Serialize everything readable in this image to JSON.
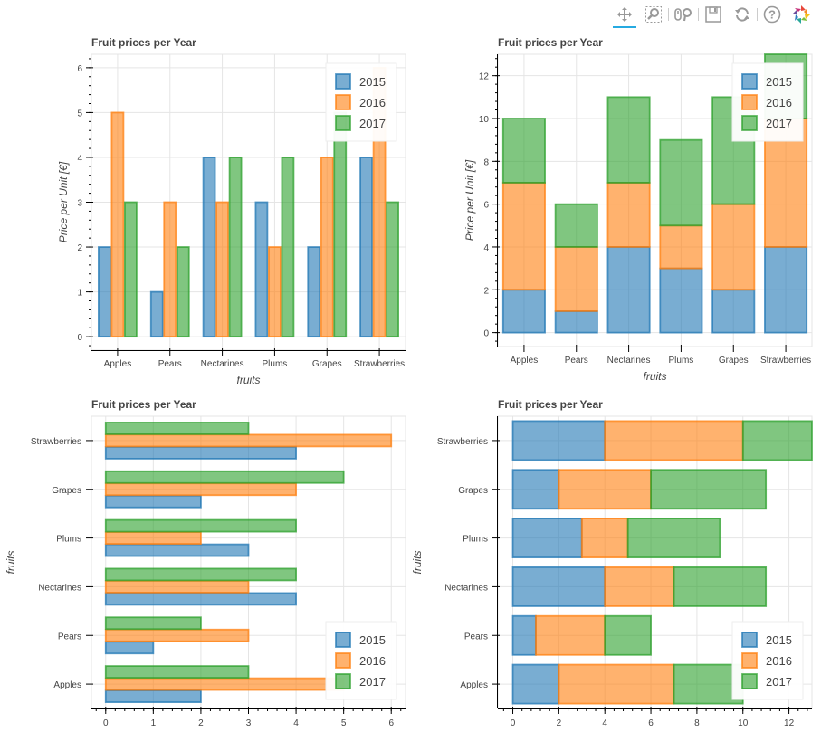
{
  "toolbar": {
    "tools": [
      {
        "name": "pan-tool",
        "icon": "pan-icon",
        "active": true
      },
      {
        "name": "box-zoom-tool",
        "icon": "box-zoom-icon",
        "active": false
      },
      {
        "name": "wheel-zoom-tool",
        "icon": "wheel-zoom-icon",
        "active": false
      },
      {
        "name": "save-tool",
        "icon": "save-icon",
        "active": false
      },
      {
        "name": "reset-tool",
        "icon": "reset-icon",
        "active": false
      },
      {
        "name": "help-tool",
        "icon": "help-icon",
        "active": false
      },
      {
        "name": "bokeh-logo",
        "icon": "bokeh-logo-icon",
        "active": false
      }
    ]
  },
  "colors": {
    "2015": "#1f77b4",
    "2016": "#ff7f0e",
    "2017": "#2ca02c"
  },
  "chart_data": [
    {
      "type": "bar",
      "orientation": "vertical",
      "mode": "grouped",
      "title": "Fruit prices per Year",
      "xlabel": "fruits",
      "ylabel": "Price per Unit [€]",
      "categories": [
        "Apples",
        "Pears",
        "Nectarines",
        "Plums",
        "Grapes",
        "Strawberries"
      ],
      "series": [
        {
          "name": "2015",
          "values": [
            2,
            1,
            4,
            3,
            2,
            4
          ]
        },
        {
          "name": "2016",
          "values": [
            5,
            3,
            3,
            2,
            4,
            6
          ]
        },
        {
          "name": "2017",
          "values": [
            3,
            2,
            4,
            4,
            5,
            3
          ]
        }
      ],
      "ylim": [
        -0.3,
        6.3
      ],
      "yticks": [
        0,
        1,
        2,
        3,
        4,
        5,
        6
      ],
      "grid": true,
      "legend": "top-right"
    },
    {
      "type": "bar",
      "orientation": "vertical",
      "mode": "stacked",
      "title": "Fruit prices per Year",
      "xlabel": "fruits",
      "ylabel": "Price per Unit [€]",
      "categories": [
        "Apples",
        "Pears",
        "Nectarines",
        "Plums",
        "Grapes",
        "Strawberries"
      ],
      "series": [
        {
          "name": "2015",
          "values": [
            2,
            1,
            4,
            3,
            2,
            4
          ]
        },
        {
          "name": "2016",
          "values": [
            5,
            3,
            3,
            2,
            4,
            6
          ]
        },
        {
          "name": "2017",
          "values": [
            3,
            2,
            4,
            4,
            5,
            3
          ]
        }
      ],
      "ylim": [
        -0.65,
        13.0
      ],
      "yticks": [
        0,
        2,
        4,
        6,
        8,
        10,
        12
      ],
      "grid": true,
      "legend": "top-right"
    },
    {
      "type": "bar",
      "orientation": "horizontal",
      "mode": "grouped",
      "title": "Fruit prices per Year",
      "xlabel": "",
      "ylabel": "fruits",
      "categories": [
        "Apples",
        "Pears",
        "Nectarines",
        "Plums",
        "Grapes",
        "Strawberries"
      ],
      "series": [
        {
          "name": "2015",
          "values": [
            2,
            1,
            4,
            3,
            2,
            4
          ]
        },
        {
          "name": "2016",
          "values": [
            5,
            3,
            3,
            2,
            4,
            6
          ]
        },
        {
          "name": "2017",
          "values": [
            3,
            2,
            4,
            4,
            5,
            3
          ]
        }
      ],
      "xlim": [
        -0.3,
        6.3
      ],
      "xticks": [
        0,
        1,
        2,
        3,
        4,
        5,
        6
      ],
      "grid": true,
      "legend": "bottom-right"
    },
    {
      "type": "bar",
      "orientation": "horizontal",
      "mode": "stacked",
      "title": "Fruit prices per Year",
      "xlabel": "",
      "ylabel": "fruits",
      "categories": [
        "Apples",
        "Pears",
        "Nectarines",
        "Plums",
        "Grapes",
        "Strawberries"
      ],
      "series": [
        {
          "name": "2015",
          "values": [
            2,
            1,
            4,
            3,
            2,
            4
          ]
        },
        {
          "name": "2016",
          "values": [
            5,
            3,
            3,
            2,
            4,
            6
          ]
        },
        {
          "name": "2017",
          "values": [
            3,
            2,
            4,
            4,
            5,
            3
          ]
        }
      ],
      "xlim": [
        -0.65,
        13.0
      ],
      "xticks": [
        0,
        2,
        4,
        6,
        8,
        10,
        12
      ],
      "grid": true,
      "legend": "bottom-right"
    }
  ]
}
